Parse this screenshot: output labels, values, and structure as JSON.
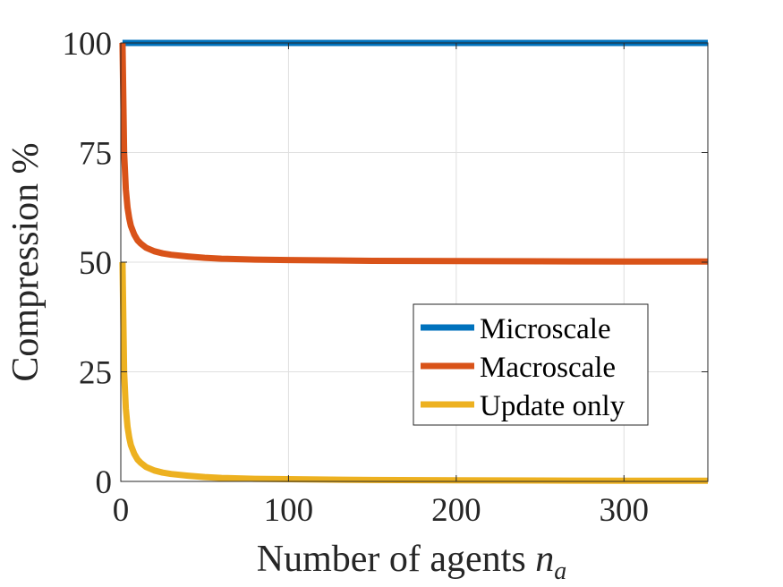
{
  "chart_data": {
    "type": "line",
    "title": "",
    "xlabel": "Number of agents ",
    "xlabel_var": "n",
    "xlabel_sub": "a",
    "ylabel": "Compression %",
    "xlim": [
      0,
      350
    ],
    "ylim": [
      0,
      100
    ],
    "xticks": [
      0,
      100,
      200,
      300
    ],
    "yticks": [
      0,
      25,
      50,
      75,
      100
    ],
    "xtick_labels": [
      "0",
      "100",
      "200",
      "300"
    ],
    "ytick_labels": [
      "0",
      "25",
      "50",
      "75",
      "100"
    ],
    "grid": true,
    "legend_position": "center-right",
    "series": [
      {
        "name": "Microscale",
        "color": "#0072BD",
        "x": [
          1,
          2,
          5,
          10,
          20,
          50,
          100,
          150,
          200,
          250,
          300,
          350
        ],
        "values": [
          100,
          100,
          100,
          100,
          100,
          100,
          100,
          100,
          100,
          100,
          100,
          100
        ]
      },
      {
        "name": "Macroscale",
        "color": "#D95319",
        "x": [
          1,
          2,
          3,
          4,
          5,
          6,
          8,
          10,
          12,
          15,
          20,
          25,
          30,
          40,
          50,
          60,
          80,
          100,
          150,
          200,
          250,
          300,
          350
        ],
        "values": [
          100,
          75,
          66.7,
          62.5,
          60,
          58.3,
          56.3,
          55,
          54.2,
          53.3,
          52.5,
          52,
          51.7,
          51.3,
          51,
          50.8,
          50.6,
          50.5,
          50.3,
          50.25,
          50.2,
          50.17,
          50.14
        ]
      },
      {
        "name": "Update only",
        "color": "#EDB120",
        "x": [
          1,
          2,
          3,
          4,
          5,
          6,
          8,
          10,
          12,
          15,
          20,
          25,
          30,
          40,
          50,
          60,
          80,
          100,
          150,
          200,
          250,
          300,
          350
        ],
        "values": [
          50,
          25,
          16.7,
          12.5,
          10,
          8.3,
          6.3,
          5,
          4.2,
          3.3,
          2.5,
          2,
          1.7,
          1.3,
          1,
          0.8,
          0.6,
          0.5,
          0.33,
          0.25,
          0.2,
          0.17,
          0.14
        ]
      }
    ]
  }
}
